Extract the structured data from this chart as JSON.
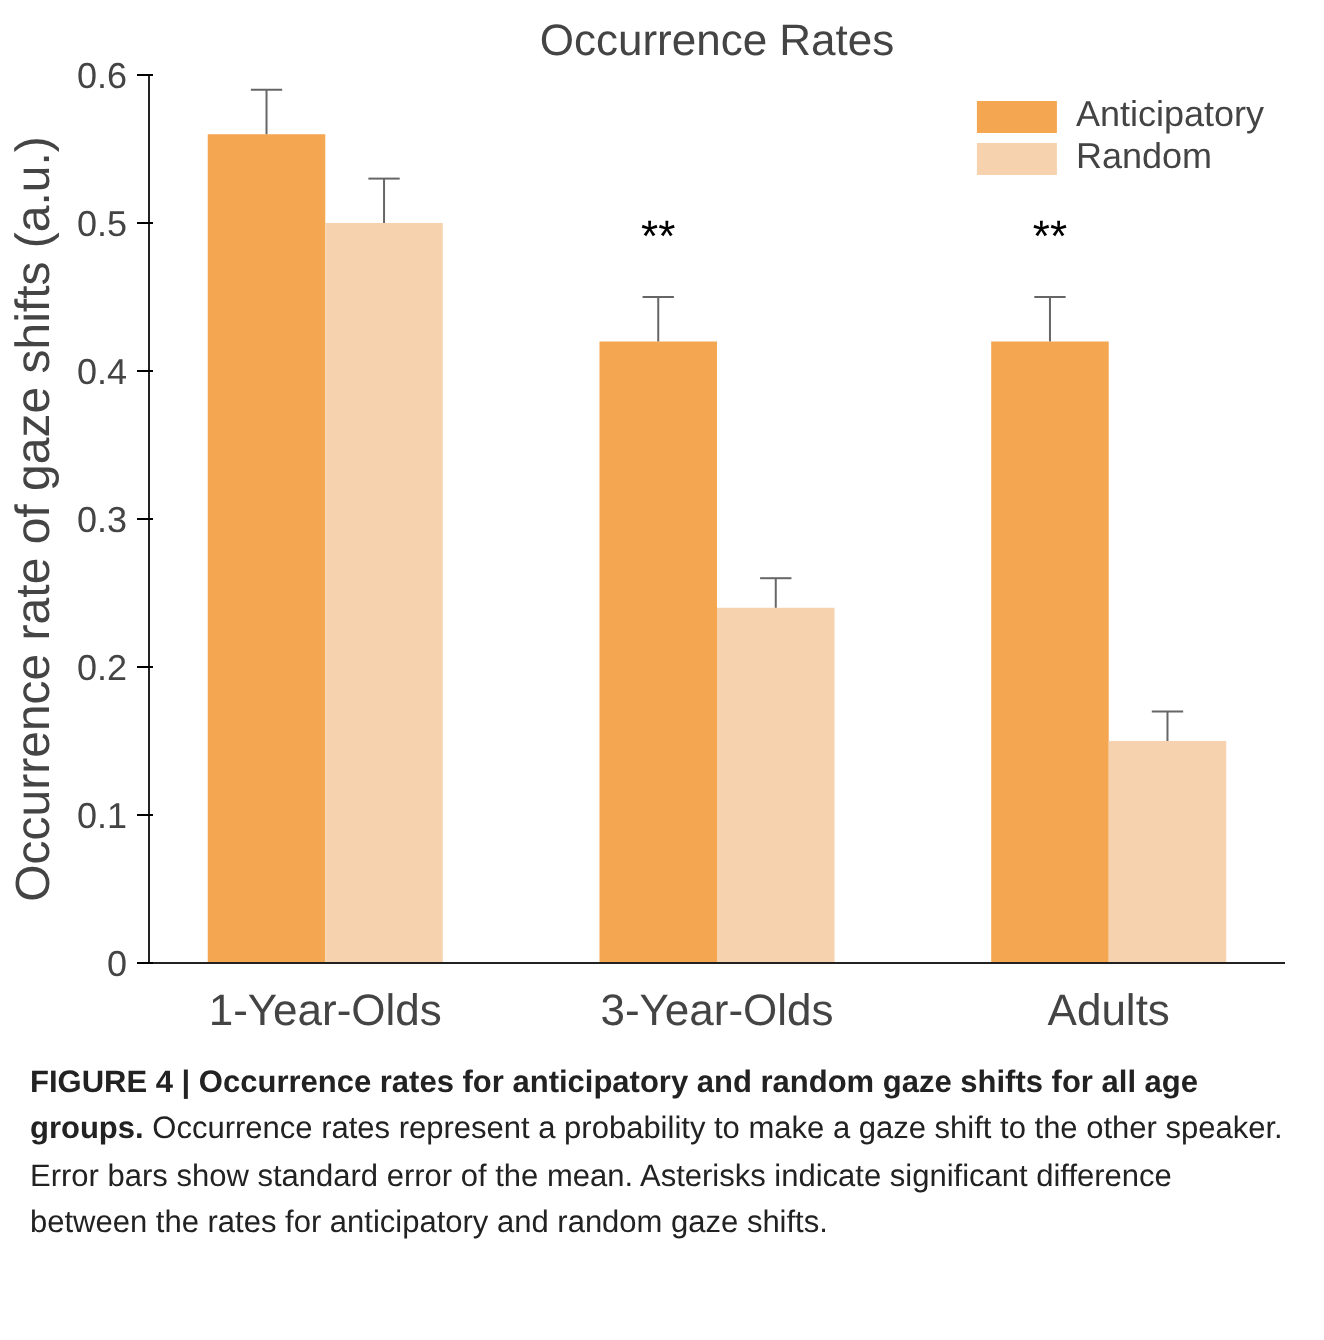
{
  "chart_data": {
    "type": "bar",
    "title": "Occurrence Rates",
    "ylabel": "Occurrence rate of gaze shifts (a.u.)",
    "categories": [
      "1-Year-Olds",
      "3-Year-Olds",
      "Adults"
    ],
    "series": [
      {
        "name": "Anticipatory",
        "color": "#f5a651",
        "values": [
          0.56,
          0.42,
          0.42
        ],
        "errors": [
          [
            0.56,
            0.59
          ],
          [
            0.42,
            0.45
          ],
          [
            0.42,
            0.45
          ]
        ]
      },
      {
        "name": "Random",
        "color": "#f6d2ae",
        "values": [
          0.5,
          0.24,
          0.15
        ],
        "errors": [
          [
            0.5,
            0.53
          ],
          [
            0.24,
            0.26
          ],
          [
            0.15,
            0.17
          ]
        ]
      }
    ],
    "ylim": [
      0,
      0.6
    ],
    "yticks": [
      0,
      0.1,
      0.2,
      0.3,
      0.4,
      0.5,
      0.6
    ],
    "legend": "top right",
    "annotations": [
      "**",
      "**",
      "FIGURE 4 | Occurrence rates for anticipatory and random gaze shifts for all age groups.",
      "Occurrence rates represent a probability to make a gaze shift to the other speaker. Error bars show standard error of the mean. Asterisks indicate significant difference between the rates for anticipatory and random gaze shifts."
    ]
  }
}
